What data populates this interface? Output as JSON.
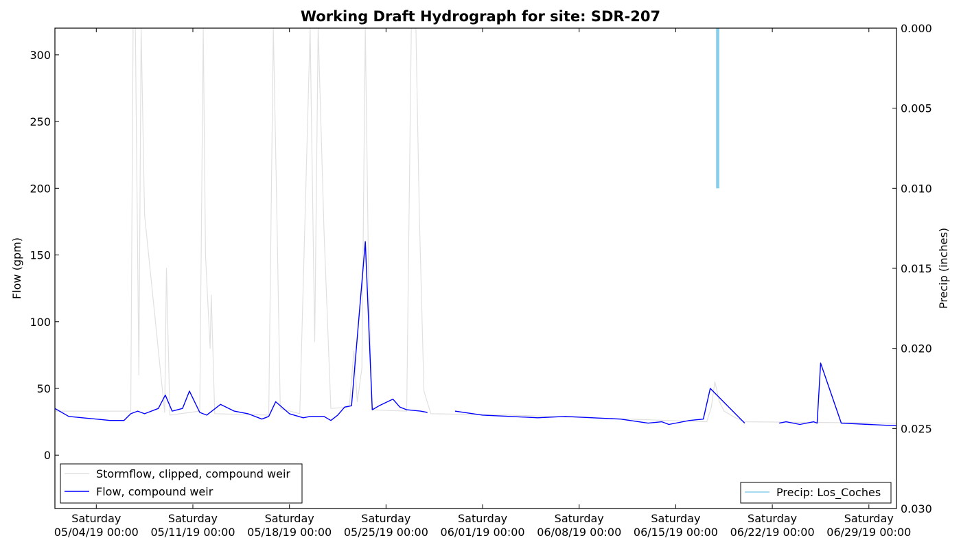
{
  "chart_data": {
    "type": "line",
    "title": "Working Draft Hydrograph for site: SDR-207",
    "ylabel": "Flow (gpm)",
    "y2label": "Precip (inches)",
    "xlim": [
      "05/01/19 00:00",
      "07/01/19 00:00"
    ],
    "ylim": [
      -40,
      320
    ],
    "y2lim": [
      0.03,
      0.0
    ],
    "y2_inverted": true,
    "xticks": [
      {
        "day": "Saturday",
        "date": "05/04/19 00:00"
      },
      {
        "day": "Saturday",
        "date": "05/11/19 00:00"
      },
      {
        "day": "Saturday",
        "date": "05/18/19 00:00"
      },
      {
        "day": "Saturday",
        "date": "05/25/19 00:00"
      },
      {
        "day": "Saturday",
        "date": "06/01/19 00:00"
      },
      {
        "day": "Saturday",
        "date": "06/08/19 00:00"
      },
      {
        "day": "Saturday",
        "date": "06/15/19 00:00"
      },
      {
        "day": "Saturday",
        "date": "06/22/19 00:00"
      },
      {
        "day": "Saturday",
        "date": "06/29/19 00:00"
      }
    ],
    "yticks": [
      "0",
      "50",
      "100",
      "150",
      "200",
      "250",
      "300"
    ],
    "y2ticks": [
      "0.000",
      "0.005",
      "0.010",
      "0.015",
      "0.020",
      "0.025",
      "0.030"
    ],
    "legend_left": [
      "Stormflow, clipped, compound weir",
      "Flow, compound weir"
    ],
    "legend_left_position": "lower-left",
    "legend_right": [
      "Precip: Los_Coches"
    ],
    "legend_right_position": "lower-right",
    "grid": false,
    "series": [
      {
        "name": "Stormflow, clipped, compound weir",
        "axis": "left",
        "color": "#e0e0e0",
        "x": [
          "05/01/19 00:00",
          "05/06/19 12:00",
          "05/06/19 16:00",
          "05/06/19 20:00",
          "05/07/19 02:00",
          "05/07/19 06:00",
          "05/07/19 12:00",
          "05/08/19 23:00",
          "05/09/19 02:00",
          "05/09/19 08:00",
          "05/11/19 12:00",
          "05/11/19 18:00",
          "05/11/19 22:00",
          "05/12/19 06:00",
          "05/12/19 08:00",
          "05/12/19 14:00",
          "05/16/19 12:00",
          "05/16/19 20:00",
          "05/17/19 02:00",
          "05/17/19 08:00",
          "05/18/19 18:00",
          "05/19/19 12:00",
          "05/19/19 20:00",
          "05/20/19 02:00",
          "05/20/19 12:00",
          "05/21/19 00:00",
          "05/22/19 08:00",
          "05/22/19 16:00",
          "05/22/19 22:00",
          "05/23/19 06:00",
          "05/23/19 12:00",
          "05/23/19 18:00",
          "05/24/19 00:00",
          "05/26/19 12:00",
          "05/26/19 20:00",
          "05/27/19 04:00",
          "05/27/19 10:00",
          "05/27/19 18:00",
          "05/28/19 06:00",
          "06/03/19 00:00",
          "06/17/19 06:00",
          "06/17/19 14:00",
          "06/17/19 20:00",
          "06/18/19 04:00",
          "06/18/19 12:00",
          "06/19/19 08:00",
          "06/20/19 00:00",
          "07/01/19 00:00"
        ],
        "values": [
          33,
          33,
          320,
          320,
          60,
          320,
          180,
          32,
          140,
          30,
          33,
          320,
          150,
          80,
          120,
          31,
          30,
          320,
          185,
          35,
          31,
          320,
          85,
          320,
          170,
          35,
          36,
          78,
          40,
          65,
          320,
          125,
          34,
          33,
          320,
          320,
          180,
          48,
          31,
          30,
          25,
          36,
          55,
          40,
          33,
          28,
          25,
          24
        ]
      },
      {
        "name": "Flow, compound weir",
        "axis": "left",
        "color": "#0000ff",
        "x": [
          "05/01/19 00:00",
          "05/02/19 00:00",
          "05/03/19 00:00",
          "05/04/19 00:00",
          "05/05/19 00:00",
          "05/06/19 00:00",
          "05/06/19 12:00",
          "05/07/19 00:00",
          "05/07/19 12:00",
          "05/08/19 12:00",
          "05/09/19 00:00",
          "05/09/19 12:00",
          "05/10/19 06:00",
          "05/10/19 18:00",
          "05/11/19 12:00",
          "05/12/19 00:00",
          "05/13/19 00:00",
          "05/14/19 00:00",
          "05/15/19 00:00",
          "05/16/19 00:00",
          "05/16/19 12:00",
          "05/17/19 00:00",
          "05/18/19 00:00",
          "05/19/19 00:00",
          "05/19/19 12:00",
          "05/20/19 12:00",
          "05/21/19 00:00",
          "05/21/19 12:00",
          "05/22/19 00:00",
          "05/22/19 12:00",
          "05/23/19 12:00",
          "05/24/19 00:00",
          "05/24/19 12:00",
          "05/25/19 12:00",
          "05/26/19 00:00",
          "05/26/19 12:00",
          "05/27/19 12:00",
          "05/28/19 00:00",
          "05/29/19 00:00",
          "05/30/19 00:00",
          "06/01/19 00:00",
          "06/03/19 00:00",
          "06/05/19 00:00",
          "06/07/19 00:00",
          "06/09/19 00:00",
          "06/11/19 00:00",
          "06/13/19 00:00",
          "06/14/19 00:00",
          "06/14/19 12:00",
          "06/16/19 00:00",
          "06/17/19 00:00",
          "06/17/19 12:00",
          "06/20/19 00:00",
          "06/21/19 00:00",
          "06/22/19 00:00",
          "06/22/19 12:00",
          "06/23/19 00:00",
          "06/24/19 00:00",
          "06/25/19 00:00",
          "06/25/19 06:00",
          "06/25/19 12:00",
          "06/27/19 00:00",
          "06/29/19 00:00",
          "07/01/19 00:00"
        ],
        "values": [
          35,
          29,
          28,
          27,
          26,
          26,
          31,
          33,
          31,
          35,
          45,
          33,
          35,
          48,
          32,
          30,
          38,
          33,
          31,
          27,
          29,
          40,
          31,
          28,
          29,
          29,
          26,
          30,
          36,
          37,
          160,
          34,
          37,
          42,
          36,
          34,
          33,
          32,
          null,
          33,
          30,
          29,
          28,
          29,
          28,
          27,
          24,
          25,
          23,
          26,
          27,
          50,
          24,
          null,
          null,
          24,
          25,
          23,
          25,
          24,
          69,
          24,
          23,
          22
        ]
      },
      {
        "name": "Precip: Los_Coches",
        "axis": "right",
        "color": "#87ceeb",
        "x": [
          "06/18/19 00:00",
          "06/18/19 02:00"
        ],
        "values": [
          0.01,
          0.01
        ]
      }
    ]
  }
}
